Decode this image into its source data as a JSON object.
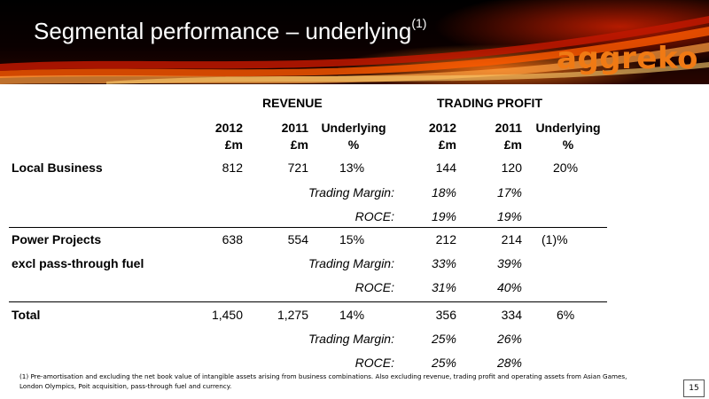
{
  "slide": {
    "title": "Segmental performance – underlying",
    "title_sup": "(1)",
    "logo": "aggreko",
    "page_number": "15"
  },
  "headers": {
    "revenue": "REVENUE",
    "trading_profit": "TRADING PROFIT",
    "cols": [
      {
        "line1": "2012",
        "line2": "£m"
      },
      {
        "line1": "2011",
        "line2": "£m"
      },
      {
        "line1": "Underlying",
        "line2": "%"
      },
      {
        "line1": "2012",
        "line2": "£m"
      },
      {
        "line1": "2011",
        "line2": "£m"
      },
      {
        "line1": "Underlying",
        "line2": "%"
      }
    ]
  },
  "segments": {
    "local": {
      "name": "Local Business",
      "rev_2012": "812",
      "rev_2011": "721",
      "rev_underlying": "13%",
      "tp_2012": "144",
      "tp_2011": "120",
      "tp_underlying": "20%",
      "margin_label": "Trading Margin:",
      "margin_2012": "18%",
      "margin_2011": "17%",
      "roce_label": "ROCE:",
      "roce_2012": "19%",
      "roce_2011": "19%"
    },
    "power": {
      "name": "Power Projects",
      "name2": "excl pass-through fuel",
      "rev_2012": "638",
      "rev_2011": "554",
      "rev_underlying": "15%",
      "tp_2012": "212",
      "tp_2011": "214",
      "tp_underlying": "(1)%",
      "margin_label": "Trading Margin:",
      "margin_2012": "33%",
      "margin_2011": "39%",
      "roce_label": "ROCE:",
      "roce_2012": "31%",
      "roce_2011": "40%"
    },
    "total": {
      "name": "Total",
      "rev_2012": "1,450",
      "rev_2011": "1,275",
      "rev_underlying": "14%",
      "tp_2012": "356",
      "tp_2011": "334",
      "tp_underlying": "6%",
      "margin_label": "Trading Margin:",
      "margin_2012": "25%",
      "margin_2011": "26%",
      "roce_label": "ROCE:",
      "roce_2012": "25%",
      "roce_2011": "28%"
    }
  },
  "footnote": "(1) Pre-amortisation and excluding the net book value of intangible assets arising from business combinations. Also excluding revenue, trading profit and operating assets from Asian Games, London Olympics, Poit acquisition, pass-through fuel and currency."
}
